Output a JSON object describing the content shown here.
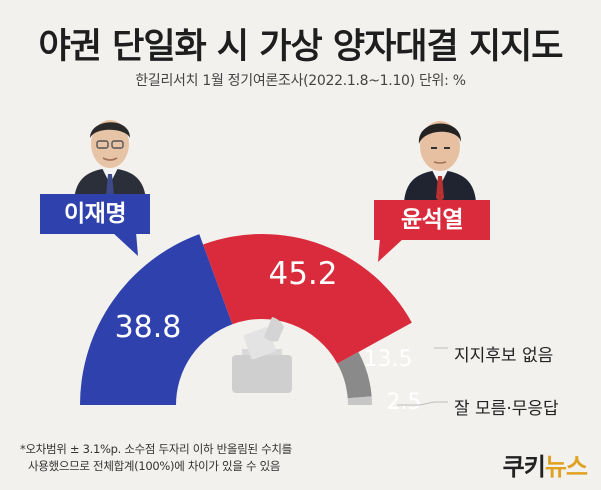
{
  "title": "야권 단일화 시 가상 양자대결 지지도",
  "subtitle": "한길리서치 1월 정기여론조사(2022.1.8~1.10) 단위: %",
  "chart_data": {
    "type": "pie",
    "shape": "semicircle-donut",
    "total": 100,
    "slices": [
      {
        "label": "이재명",
        "value": 38.8,
        "color": "#2f41ad"
      },
      {
        "label": "윤석열",
        "value": 45.2,
        "color": "#d92b3c"
      },
      {
        "label": "지지후보 없음",
        "value": 13.5,
        "color": "#8a8a8a"
      },
      {
        "label": "잘 모름·무응답",
        "value": 2.5,
        "color": "#c6c6c6"
      }
    ]
  },
  "candidates": {
    "left": {
      "name": "이재명",
      "color": "#2f41ad",
      "icon": "person-portrait"
    },
    "right": {
      "name": "윤석열",
      "color": "#d92b3c",
      "icon": "person-portrait"
    }
  },
  "center_icon": "ballot-box-icon",
  "footnote": {
    "line1": "*오차범위 ± 3.1%p. 소수점 두자리 이하 반올림된 수치를",
    "line2": "사용했으므로 전체합계(100%)에 차이가 있을 수 있음"
  },
  "logo": {
    "part1": "쿠키",
    "part2": "뉴스"
  }
}
